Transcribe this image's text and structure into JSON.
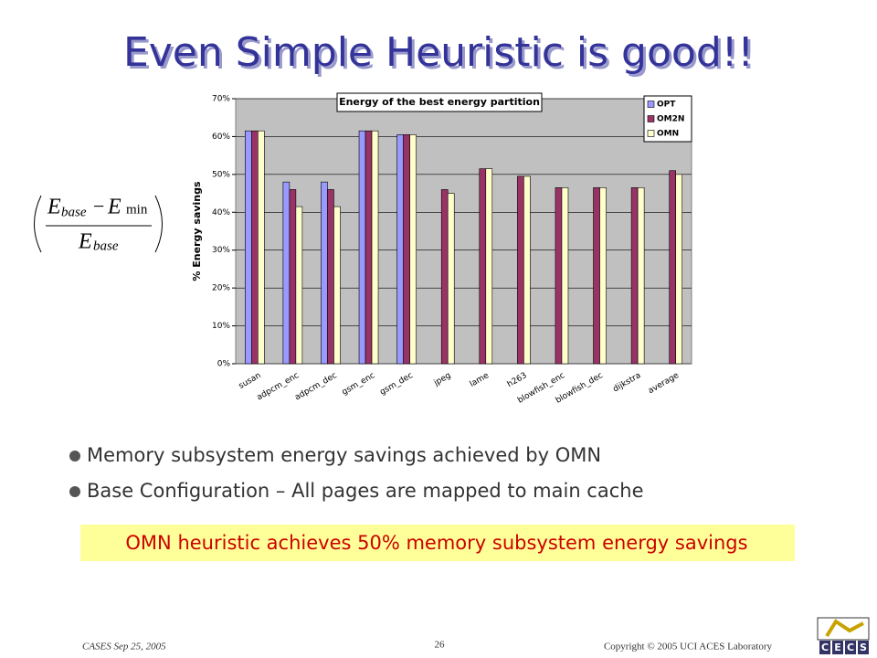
{
  "title": "Even Simple Heuristic is good!!",
  "formula": {
    "numerator_left": "E",
    "numerator_left_sub": "base",
    "minus": "−",
    "numerator_right": "E",
    "numerator_right_sub": "min",
    "denominator": "E",
    "denominator_sub": "base"
  },
  "bullets": [
    "Memory subsystem energy savings achieved by OMN",
    "Base Configuration – All pages are mapped to main cache"
  ],
  "highlight": "OMN heuristic achieves 50% memory subsystem energy savings",
  "footer": {
    "left": "CASES Sep 25, 2005",
    "page": "26",
    "right": "Copyright © 2005 UCI ACES Laboratory",
    "logo": [
      "C",
      "E",
      "C",
      "S"
    ]
  },
  "chart_data": {
    "type": "bar",
    "title": "Energy of the best energy partition",
    "y_label": "% Energy savings",
    "categories": [
      "susan",
      "adpcm_enc",
      "adpcm_dec",
      "gsm_enc",
      "gsm_dec",
      "jpeg",
      "lame",
      "h263",
      "blowfish_enc",
      "blowfish_dec",
      "dijkstra",
      "average"
    ],
    "series": [
      {
        "name": "OPT",
        "color": "#9999ff",
        "values": [
          61.5,
          48,
          48,
          61.5,
          60.5,
          null,
          null,
          null,
          null,
          null,
          null,
          null
        ]
      },
      {
        "name": "OM2N",
        "color": "#993366",
        "values": [
          61.5,
          46,
          46,
          61.5,
          60.5,
          46,
          51.5,
          49.5,
          46.5,
          46.5,
          46.5,
          51
        ]
      },
      {
        "name": "OMN",
        "color": "#ffffcc",
        "values": [
          61.5,
          41.5,
          41.5,
          61.5,
          60.5,
          45,
          51.5,
          49.5,
          46.5,
          46.5,
          46.5,
          50
        ]
      }
    ],
    "ylim": [
      0,
      70
    ],
    "yticks": [
      {
        "value": 0,
        "label": "0%"
      },
      {
        "value": 10,
        "label": "10%"
      },
      {
        "value": 20,
        "label": "20%"
      },
      {
        "value": 30,
        "label": "30%"
      },
      {
        "value": 40,
        "label": "40%"
      },
      {
        "value": 50,
        "label": "50%"
      },
      {
        "value": 60,
        "label": "60%"
      },
      {
        "value": 70,
        "label": "70%"
      }
    ],
    "grid": true,
    "legend": "top-right",
    "plot_background": "#c0c0c0"
  }
}
